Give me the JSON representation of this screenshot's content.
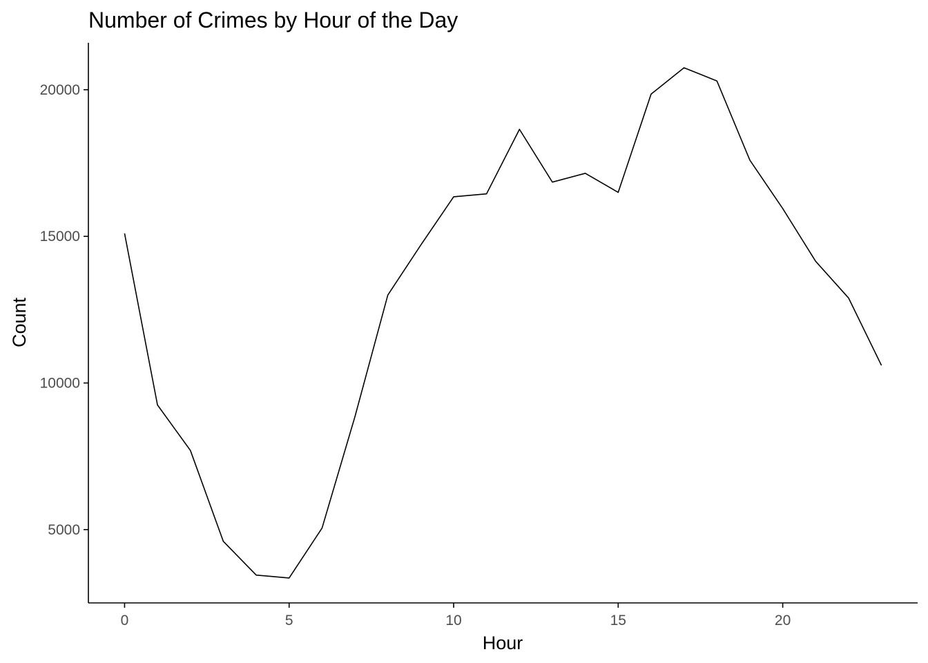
{
  "chart_data": {
    "type": "line",
    "title": "Number of Crimes by Hour of the Day",
    "xlabel": "Hour",
    "ylabel": "Count",
    "x": [
      0,
      1,
      2,
      3,
      4,
      5,
      6,
      7,
      8,
      9,
      10,
      11,
      12,
      13,
      14,
      15,
      16,
      17,
      18,
      19,
      20,
      21,
      22,
      23
    ],
    "series": [
      {
        "values": [
          15100,
          9250,
          7700,
          4600,
          3450,
          3350,
          5050,
          8850,
          13000,
          14700,
          16350,
          16450,
          18650,
          16850,
          17150,
          16500,
          19850,
          20750,
          20300,
          17600,
          15950,
          14150,
          12900,
          10600
        ]
      }
    ],
    "xlim": [
      -1.1,
      24.1
    ],
    "ylim": [
      2500,
      21600
    ],
    "xticks": [
      0,
      5,
      10,
      15,
      20
    ],
    "yticks": [
      5000,
      10000,
      15000,
      20000
    ],
    "xtick_labels": [
      "0",
      "5",
      "10",
      "15",
      "20"
    ],
    "ytick_labels": [
      "5000",
      "10000",
      "15000",
      "20000"
    ],
    "grid": false,
    "legend": "none",
    "line_color": "#000000"
  }
}
